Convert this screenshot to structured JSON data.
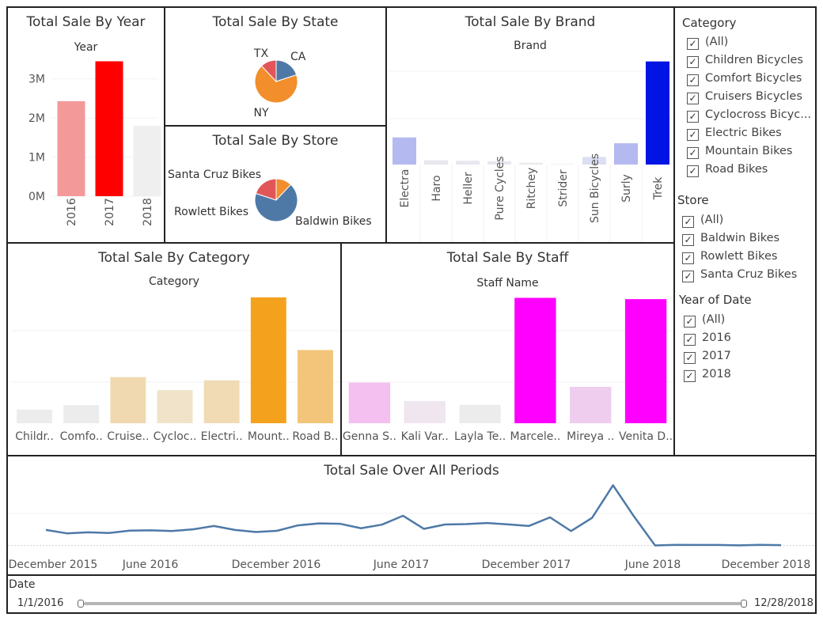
{
  "colors": {
    "year": [
      "#f4999a",
      "#ff0000",
      "#efefef"
    ],
    "brand": [
      "#b4b9f0",
      "#e7e7ef",
      "#e7e7ef",
      "#e7e7ef",
      "#e9e9ee",
      "#ededed",
      "#dcdff3",
      "#b4b9f0",
      "#0015e3"
    ],
    "category": [
      "#ececec",
      "#ececec",
      "#f0d9b0",
      "#f0e3c9",
      "#f0dbb5",
      "#f4a21e",
      "#f2c57a"
    ],
    "staff": [
      "#f3c0f0",
      "#efe6ef",
      "#ececec",
      "#ff00ff",
      "#efcdee",
      "#ff00ff"
    ],
    "pie_state": {
      "CA": "#4e79a7",
      "NY": "#f28e2b",
      "TX": "#e15759"
    },
    "pie_store": {
      "Santa Cruz Bikes": "#e15759",
      "Rowlett Bikes": "#f28e2b",
      "Baldwin Bikes": "#4e79a7"
    },
    "line": "#4e79a7"
  },
  "filters": {
    "category": {
      "title": "Category",
      "items": [
        "(All)",
        "Children Bicycles",
        "Comfort Bicycles",
        "Cruisers Bicycles",
        "Cyclocross Bicyc...",
        "Electric Bikes",
        "Mountain Bikes",
        "Road Bikes"
      ]
    },
    "store": {
      "title": "Store",
      "items": [
        "(All)",
        "Baldwin Bikes",
        "Rowlett Bikes",
        "Santa Cruz Bikes"
      ]
    },
    "year": {
      "title": "Year of Date",
      "items": [
        "(All)",
        "2016",
        "2017",
        "2018"
      ]
    }
  },
  "date_filter": {
    "label": "Date",
    "start": "1/1/2016",
    "end": "12/28/2018"
  },
  "chart_data": [
    {
      "id": "year",
      "type": "bar",
      "title": "Total Sale By Year",
      "subtitle": "Year",
      "categories": [
        "2016",
        "2017",
        "2018"
      ],
      "values": [
        2.43,
        3.45,
        1.8
      ],
      "ylim": [
        0,
        3.5
      ],
      "yticks": [
        {
          "value": 0,
          "label": "0M"
        },
        {
          "value": 1,
          "label": "1M"
        },
        {
          "value": 2,
          "label": "2M"
        },
        {
          "value": 3,
          "label": "3M"
        }
      ]
    },
    {
      "id": "state",
      "type": "pie",
      "title": "Total Sale By State",
      "labels": [
        "CA",
        "NY",
        "TX"
      ],
      "values": [
        20,
        68,
        12
      ]
    },
    {
      "id": "store",
      "type": "pie",
      "title": "Total Sale By Store",
      "labels": [
        "Santa Cruz Bikes",
        "Rowlett Bikes",
        "Baldwin Bikes"
      ],
      "values": [
        20,
        12,
        68
      ]
    },
    {
      "id": "brand",
      "type": "bar",
      "title": "Total Sale By Brand",
      "subtitle": "Brand",
      "categories": [
        "Electra",
        "Haro",
        "Heller",
        "Pure Cycles",
        "Ritchey",
        "Strider",
        "Sun Bicycles",
        "Surly",
        "Trek"
      ],
      "values": [
        1.21,
        0.19,
        0.17,
        0.15,
        0.08,
        0.03,
        0.34,
        0.95,
        4.6
      ],
      "ylim": [
        0,
        4.8
      ]
    },
    {
      "id": "category",
      "type": "bar",
      "title": "Total Sale By Category",
      "subtitle": "Category",
      "categories": [
        "Childr..",
        "Comfo..",
        "Cruise..",
        "Cycloc..",
        "Electri..",
        "Mount..",
        "Road B.."
      ],
      "values": [
        0.29,
        0.39,
        0.99,
        0.71,
        0.92,
        2.7,
        1.57
      ],
      "ylim": [
        0,
        2.8
      ]
    },
    {
      "id": "staff",
      "type": "bar",
      "title": "Total Sale By Staff",
      "subtitle": "Staff Name",
      "categories": [
        "Genna S..",
        "Kali Var..",
        "Layla Te..",
        "Marcele..",
        "Mireya ..",
        "Venita D.."
      ],
      "values": [
        0.95,
        0.52,
        0.43,
        2.93,
        0.85,
        2.9
      ],
      "ylim": [
        0,
        3.05
      ]
    },
    {
      "id": "periods",
      "type": "line",
      "title": "Total Sale Over All Periods",
      "x_labels": [
        "December 2015",
        "June 2016",
        "December 2016",
        "June 2017",
        "December 2017",
        "June 2018",
        "December 2018"
      ],
      "x": [
        "2016-01",
        "2016-02",
        "2016-03",
        "2016-04",
        "2016-05",
        "2016-06",
        "2016-07",
        "2016-08",
        "2016-09",
        "2016-10",
        "2016-11",
        "2016-12",
        "2017-01",
        "2017-02",
        "2017-03",
        "2017-04",
        "2017-05",
        "2017-06",
        "2017-07",
        "2017-08",
        "2017-09",
        "2017-10",
        "2017-11",
        "2017-12",
        "2018-01",
        "2018-02",
        "2018-03",
        "2018-04",
        "2018-05",
        "2018-06",
        "2018-07",
        "2018-08",
        "2018-09",
        "2018-10",
        "2018-11",
        "2018-12"
      ],
      "values": [
        215,
        168,
        183,
        173,
        205,
        210,
        200,
        223,
        270,
        215,
        187,
        203,
        278,
        305,
        300,
        238,
        288,
        410,
        230,
        290,
        295,
        310,
        292,
        270,
        388,
        200,
        380,
        830,
        400,
        2,
        10,
        8,
        8,
        3,
        9,
        5
      ],
      "ylim": [
        -15,
        900
      ]
    }
  ]
}
